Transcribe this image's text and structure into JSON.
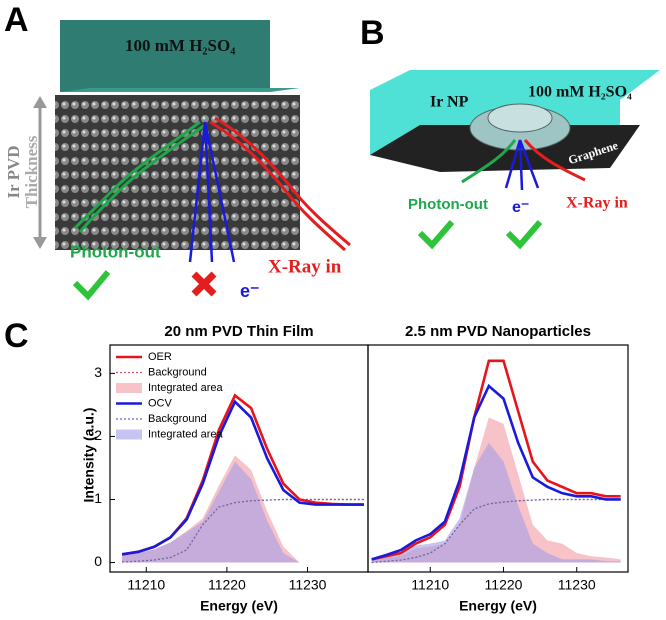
{
  "panels": {
    "a": {
      "letter": "A",
      "electrolyte": "100 mM H₂SO₄",
      "axis_label": "Ir PVD",
      "thickness": "Thickness",
      "photon": "Photon-out",
      "xray": "X-Ray in",
      "electron": "e⁻"
    },
    "b": {
      "letter": "B",
      "electrolyte": "100 mM H₂SO₄",
      "particle": "Ir NP",
      "support": "Graphene",
      "photon": "Photon-out",
      "electron": "e⁻",
      "xray": "X-Ray in"
    },
    "c": {
      "letter": "C",
      "y_label": "Intensity (a.u.)"
    }
  },
  "chart_data": [
    {
      "type": "line",
      "title": "20 nm PVD Thin Film",
      "x_label": "Energy (eV)",
      "legend": true,
      "legend_position": "upper left",
      "x": [
        11207,
        11209,
        11211,
        11213,
        11215,
        11217,
        11219,
        11221,
        11223,
        11225,
        11227,
        11229,
        11231,
        11233,
        11235,
        11237
      ],
      "xlim": [
        11205.5,
        11237.5
      ],
      "xticks": [
        11210,
        11220,
        11230
      ],
      "ylim": [
        -0.15,
        3.45
      ],
      "yticks": [
        0,
        1,
        2,
        3
      ],
      "series": [
        {
          "name": "OER",
          "color": "#e8141c",
          "style": "line",
          "values": [
            0.13,
            0.17,
            0.25,
            0.4,
            0.7,
            1.3,
            2.1,
            2.65,
            2.45,
            1.8,
            1.25,
            1.0,
            0.95,
            0.93,
            0.92,
            0.92
          ]
        },
        {
          "name": "Background",
          "color": "#c85a6a",
          "style": "dotted",
          "values": [
            0.01,
            0.02,
            0.04,
            0.08,
            0.2,
            0.6,
            0.88,
            0.95,
            0.98,
            0.99,
            1,
            1,
            1,
            1,
            1,
            1
          ]
        },
        {
          "name": "Integrated area",
          "color": "#f29aa4",
          "style": "area",
          "values": [
            0.12,
            0.15,
            0.21,
            0.32,
            0.5,
            0.7,
            1.22,
            1.7,
            1.47,
            0.81,
            0.25,
            0,
            0,
            0,
            0,
            0
          ]
        },
        {
          "name": "OCV",
          "color": "#1a1adc",
          "style": "line",
          "values": [
            0.13,
            0.17,
            0.25,
            0.4,
            0.68,
            1.25,
            2.0,
            2.55,
            2.3,
            1.65,
            1.15,
            0.95,
            0.92,
            0.92,
            0.92,
            0.92
          ]
        },
        {
          "name": "Background",
          "color": "#6a6ab0",
          "style": "dotted",
          "values": [
            0.01,
            0.02,
            0.04,
            0.08,
            0.2,
            0.6,
            0.88,
            0.95,
            0.98,
            0.99,
            1,
            1,
            1,
            1,
            1,
            1
          ]
        },
        {
          "name": "Integrated area",
          "color": "#a49ce8",
          "style": "area",
          "values": [
            0.12,
            0.15,
            0.21,
            0.32,
            0.48,
            0.65,
            1.12,
            1.6,
            1.32,
            0.66,
            0.15,
            0,
            0,
            0,
            0,
            0
          ]
        }
      ]
    },
    {
      "type": "line",
      "title": "2.5 nm PVD Nanoparticles",
      "x_label": "Energy (eV)",
      "legend": false,
      "x": [
        11202,
        11204,
        11206,
        11208,
        11210,
        11212,
        11214,
        11216,
        11218,
        11220,
        11222,
        11224,
        11226,
        11228,
        11230,
        11232,
        11234,
        11236
      ],
      "xlim": [
        11201.5,
        11237
      ],
      "xticks": [
        11210,
        11220,
        11230
      ],
      "ylim": [
        -0.15,
        3.45
      ],
      "series": [
        {
          "name": "OER",
          "color": "#e8141c",
          "style": "line",
          "values": [
            0.05,
            0.1,
            0.15,
            0.3,
            0.4,
            0.6,
            1.2,
            2.3,
            3.2,
            3.2,
            2.4,
            1.6,
            1.3,
            1.2,
            1.1,
            1.1,
            1.05,
            1.05
          ]
        },
        {
          "name": "Background",
          "color": "#c85a6a",
          "style": "dotted",
          "values": [
            0,
            0.02,
            0.04,
            0.08,
            0.15,
            0.3,
            0.6,
            0.85,
            0.93,
            0.96,
            0.98,
            0.99,
            1,
            1,
            1,
            1,
            1,
            1
          ]
        },
        {
          "name": "Integrated area",
          "color": "#f29aa4",
          "style": "area",
          "values": [
            0.05,
            0.08,
            0.11,
            0.22,
            0.25,
            0.3,
            0.6,
            1.5,
            2.3,
            2.2,
            1.4,
            0.6,
            0.35,
            0.3,
            0.15,
            0.1,
            0.08,
            0.05
          ]
        },
        {
          "name": "OCV",
          "color": "#1a1adc",
          "style": "line",
          "values": [
            0.05,
            0.12,
            0.2,
            0.35,
            0.45,
            0.65,
            1.3,
            2.3,
            2.8,
            2.6,
            1.9,
            1.35,
            1.2,
            1.1,
            1.05,
            1.05,
            1.0,
            1.0
          ]
        },
        {
          "name": "Background",
          "color": "#6a6ab0",
          "style": "dotted",
          "values": [
            0,
            0.02,
            0.04,
            0.08,
            0.15,
            0.3,
            0.6,
            0.85,
            0.93,
            0.96,
            0.98,
            0.99,
            1,
            1,
            1,
            1,
            1,
            1
          ]
        },
        {
          "name": "Integrated area",
          "color": "#a49ce8",
          "style": "area",
          "values": [
            0.05,
            0.1,
            0.16,
            0.27,
            0.3,
            0.35,
            0.7,
            1.5,
            1.9,
            1.6,
            0.9,
            0.3,
            0.15,
            0.05,
            0.05,
            0.05,
            0.02,
            0.02
          ]
        }
      ]
    }
  ]
}
